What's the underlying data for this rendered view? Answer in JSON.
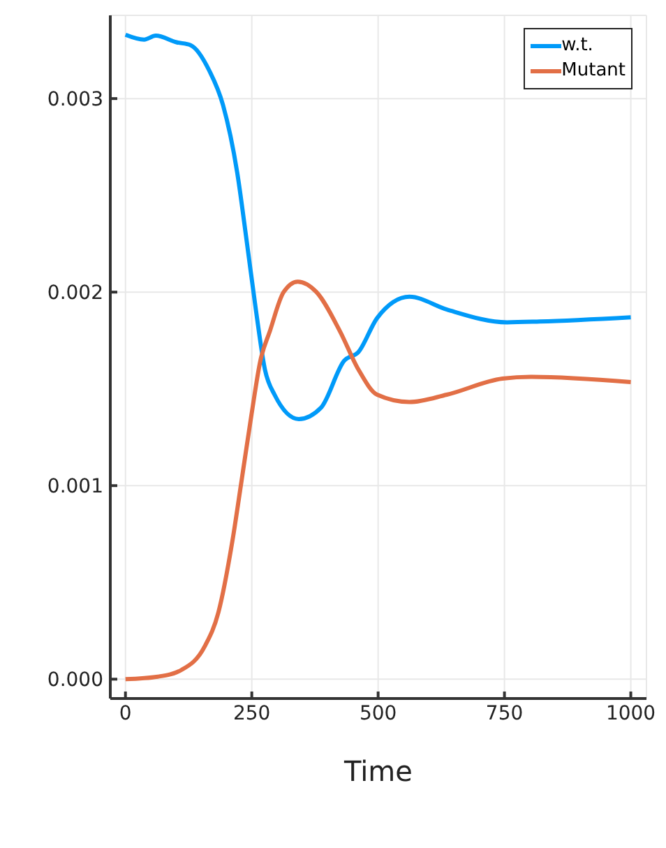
{
  "chart_data": {
    "type": "line",
    "xlabel": "Time",
    "xlim": [
      -30,
      1031
    ],
    "xticks": [
      0,
      250,
      500,
      750,
      1000
    ],
    "ylim": [
      -0.0001,
      0.00343
    ],
    "yticks": [
      {
        "value": 0,
        "label": "0.000"
      },
      0.001,
      0.002,
      0.003
    ],
    "grid": true,
    "legend": "top right",
    "marker": "none",
    "line_style": "solid",
    "series": [
      {
        "name": "w.t.",
        "color": "#009af9",
        "x": [
          0,
          37,
          60,
          101,
          129,
          166,
          193,
          221,
          240,
          258,
          276,
          295,
          343,
          387,
          433,
          461,
          498,
          562,
          636,
          755,
          820,
          1000
        ],
        "values": [
          0.00333,
          0.003305,
          0.003325,
          0.003291,
          0.003276,
          0.003144,
          0.002967,
          0.00262,
          0.002262,
          0.00191,
          0.0016,
          0.00147,
          0.001344,
          0.001403,
          0.001646,
          0.00169,
          0.001866,
          0.001976,
          0.00191,
          0.001844,
          0.001848,
          0.00187
        ]
      },
      {
        "name": "Mutant",
        "color": "#e26f46",
        "x": [
          0,
          64,
          111,
          157,
          184,
          212,
          230,
          249,
          267,
          286,
          313,
          341,
          378,
          424,
          461,
          498,
          562,
          636,
          746,
          802,
          1000
        ],
        "values": [
          0.0,
          1.3e-05,
          4.8e-05,
          0.00017,
          0.000346,
          0.00072,
          0.00103,
          0.00136,
          0.001646,
          0.0018,
          0.002,
          0.002054,
          0.002,
          0.0018,
          0.0016,
          0.00147,
          0.001432,
          0.00147,
          0.001553,
          0.001562,
          0.001535
        ]
      }
    ]
  }
}
